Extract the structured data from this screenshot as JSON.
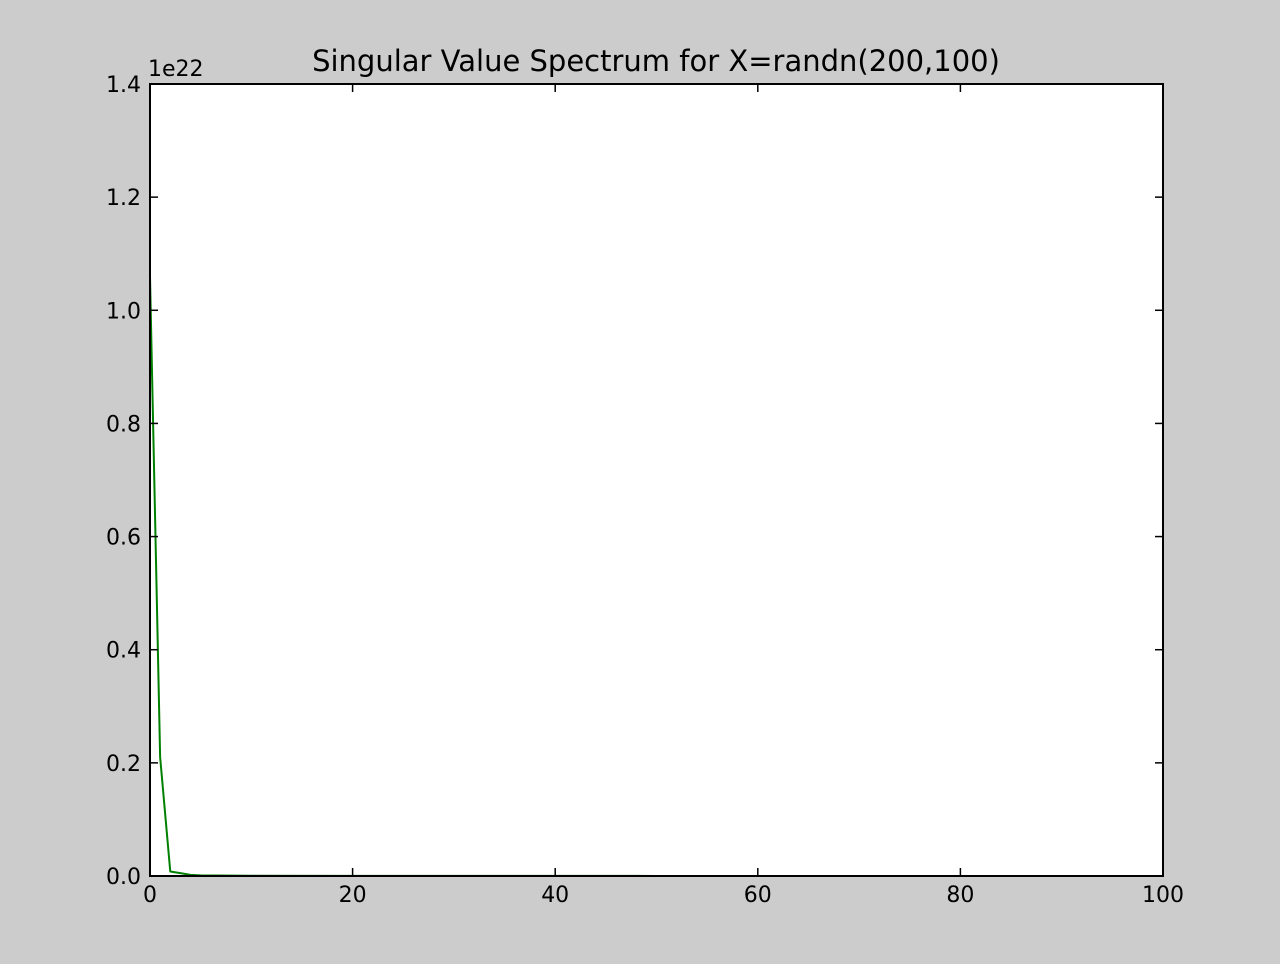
{
  "chart_data": {
    "type": "line",
    "title": "Singular Value Spectrum for X=randn(200,100)",
    "xlabel": "",
    "ylabel": "",
    "y_offset_label": "1e22",
    "y_scale": 1e+22,
    "xlim": [
      0,
      100
    ],
    "ylim": [
      0,
      1.4
    ],
    "x_ticks": [
      0,
      20,
      40,
      60,
      80,
      100
    ],
    "x_tick_labels": [
      "0",
      "20",
      "40",
      "60",
      "80",
      "100"
    ],
    "y_ticks": [
      0.0,
      0.2,
      0.4,
      0.6,
      0.8,
      1.0,
      1.2,
      1.4
    ],
    "y_tick_labels": [
      "0.0",
      "0.2",
      "0.4",
      "0.6",
      "0.8",
      "1.0",
      "1.2",
      "1.4"
    ],
    "grid": false,
    "legend": "none",
    "series": [
      {
        "color": "#008000",
        "x": [
          0,
          1,
          2,
          3,
          4,
          5,
          10,
          20,
          30,
          40,
          50,
          60,
          70,
          80,
          90,
          99
        ],
        "y": [
          1.06,
          0.21,
          0.008,
          0.005,
          0.002,
          0.001,
          0.0005,
          0.0003,
          0.0002,
          0.0002,
          0.0001,
          0.0001,
          0.0001,
          0.0001,
          0.0001,
          0.0001
        ]
      }
    ],
    "colors": {
      "figure_background": "#cccccc",
      "axes_background": "#ffffff",
      "axes_edge": "#000000",
      "line": "#008000"
    }
  }
}
